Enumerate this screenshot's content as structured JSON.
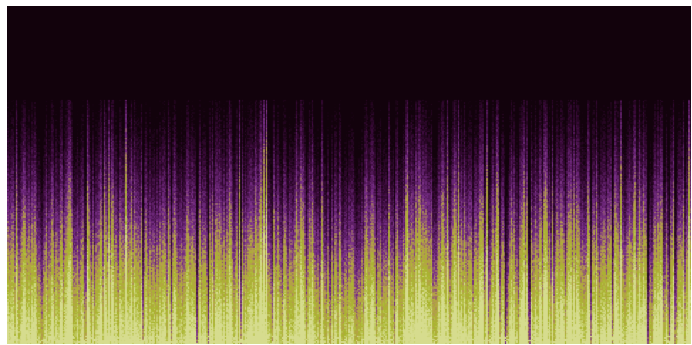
{
  "image": {
    "kind": "spectrogram",
    "columns": 481,
    "rows": 238,
    "silent_top_fraction": 0.28,
    "colors": {
      "background": "#ffffff",
      "silence": "#12020c",
      "low_energy": "#3a0a3a",
      "mid_energy": "#7a2f8a",
      "transition": "#b6a04a",
      "high_energy": "#a9b52e",
      "peak": "#d6dc8e"
    }
  }
}
